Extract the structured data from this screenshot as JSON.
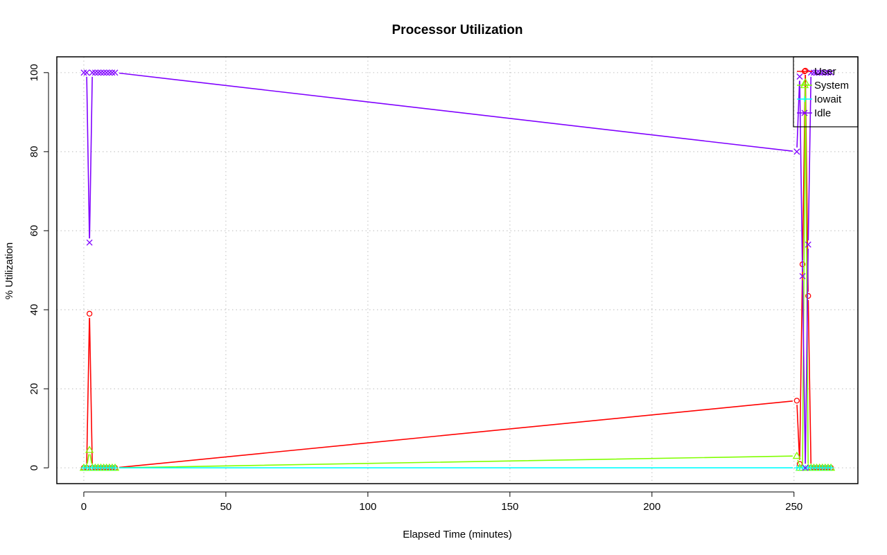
{
  "chart_data": {
    "type": "line",
    "title": "Processor Utilization",
    "xlabel": "Elapsed Time (minutes)",
    "ylabel": "% Utilization",
    "xlim": [
      -9.5,
      272.5
    ],
    "ylim": [
      -4,
      104
    ],
    "xticks": [
      0,
      50,
      100,
      150,
      200,
      250
    ],
    "yticks": [
      0,
      20,
      40,
      60,
      80,
      100
    ],
    "grid": true,
    "legend_position": "top-right",
    "x": [
      0,
      1,
      2,
      3,
      4,
      5,
      6,
      7,
      8,
      9,
      10,
      11,
      251,
      252,
      253,
      254,
      255,
      256,
      257,
      258,
      259,
      260,
      261,
      262,
      263
    ],
    "series": [
      {
        "name": "User",
        "color": "#ff0000",
        "marker": "circle",
        "values": [
          0,
          0,
          39,
          0,
          0,
          0,
          0,
          0,
          0,
          0,
          0,
          0,
          17,
          1,
          51.5,
          100.5,
          43.5,
          0,
          0,
          0,
          0,
          0,
          0,
          0,
          0
        ]
      },
      {
        "name": "System",
        "color": "#80ff00",
        "marker": "triangle",
        "values": [
          0,
          0,
          4.5,
          0,
          0,
          0,
          0,
          0,
          0,
          0,
          0,
          0,
          3,
          0,
          0,
          97.5,
          0,
          0,
          0,
          0,
          0,
          0,
          0,
          0,
          0
        ]
      },
      {
        "name": "Iowait",
        "color": "#00ffff",
        "marker": "plus",
        "values": [
          0,
          0,
          0,
          0,
          0,
          0,
          0,
          0,
          0,
          0,
          0,
          0,
          0,
          0,
          0,
          0,
          0,
          0,
          0,
          0,
          0,
          0,
          0,
          0,
          0
        ]
      },
      {
        "name": "Idle",
        "color": "#8000ff",
        "marker": "cross",
        "values": [
          100,
          100,
          57,
          100,
          100,
          100,
          100,
          100,
          100,
          100,
          100,
          100,
          80,
          99,
          48.5,
          0,
          56.5,
          100,
          100,
          100,
          100,
          100,
          100,
          100,
          100
        ]
      }
    ]
  }
}
